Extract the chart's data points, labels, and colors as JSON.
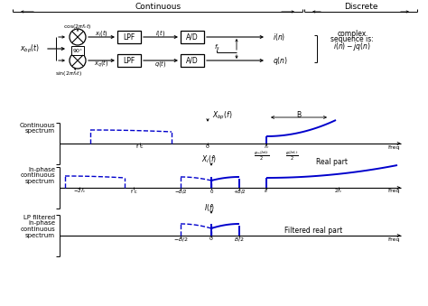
{
  "background_color": "#ffffff",
  "blue_color": "#0000cc",
  "black_color": "#000000",
  "gray_color": "#888888",
  "block_diagram": {
    "xbp_label": "$x_{bp}(t)$",
    "cos_label": "$\\cos(2\\pi f_c t)$",
    "sin_label": "$\\sin(2\\pi f_c t)$",
    "xi_label": "$x_i(t)$",
    "xq_label": "$x_q(t)$",
    "it_label": "$i(t)$",
    "qt_label": "$q(t)$",
    "fs_label": "$f_s$",
    "in_label": "$i(n)$",
    "qn_label": "$q(n)$",
    "lpf_label": "LPF",
    "ad_label": "A/D",
    "deg90_label": "90°",
    "complex_line1": "complex",
    "complex_line2": "sequence is:",
    "complex_line3": "$i(n) - jq(n)$",
    "continuous_label": "Continuous",
    "discrete_label": "Discrete"
  },
  "spectra": {
    "sp1_ylabel": [
      "Continuous",
      "spectrum"
    ],
    "sp1_xlabel": "Freq",
    "sp1_title": "$X_{bp}(f)$",
    "sp1_B_label": "B",
    "sp1_fc_label": "$f_c$",
    "sp1_0_label": "0",
    "sp1_fc2_label": "f c",
    "sp2_ylabel": [
      "In-phase",
      "continuous",
      "spectrum"
    ],
    "sp2_title": "$X_i(f)$",
    "sp2_xlabel": "Freq",
    "sp2_m2fc": "$-2f_c$",
    "sp2_fc": "f c",
    "sp2_mB2": "$-B/2$",
    "sp2_0": "0",
    "sp2_pB2": "$+B/2$",
    "sp2_fc2": "$f_c$",
    "sp2_2fc": "$2f_c$",
    "sp2_annot1": "$\\frac{e^{-j2\\pi f_c t}}{2}$",
    "sp2_annot2": "$\\frac{e^{j2\\pi f_c t}}{2}$",
    "sp2_realpart": "Real part",
    "sp3_ylabel": [
      "LP filtered",
      "in-phase",
      "continuous",
      "spectrum"
    ],
    "sp3_title": "$I(f)$",
    "sp3_xlabel": "Freq",
    "sp3_mB2": "$-B/2$",
    "sp3_0": "0",
    "sp3_B2": "$B/2$",
    "sp3_filtered": "Filtered real part"
  }
}
